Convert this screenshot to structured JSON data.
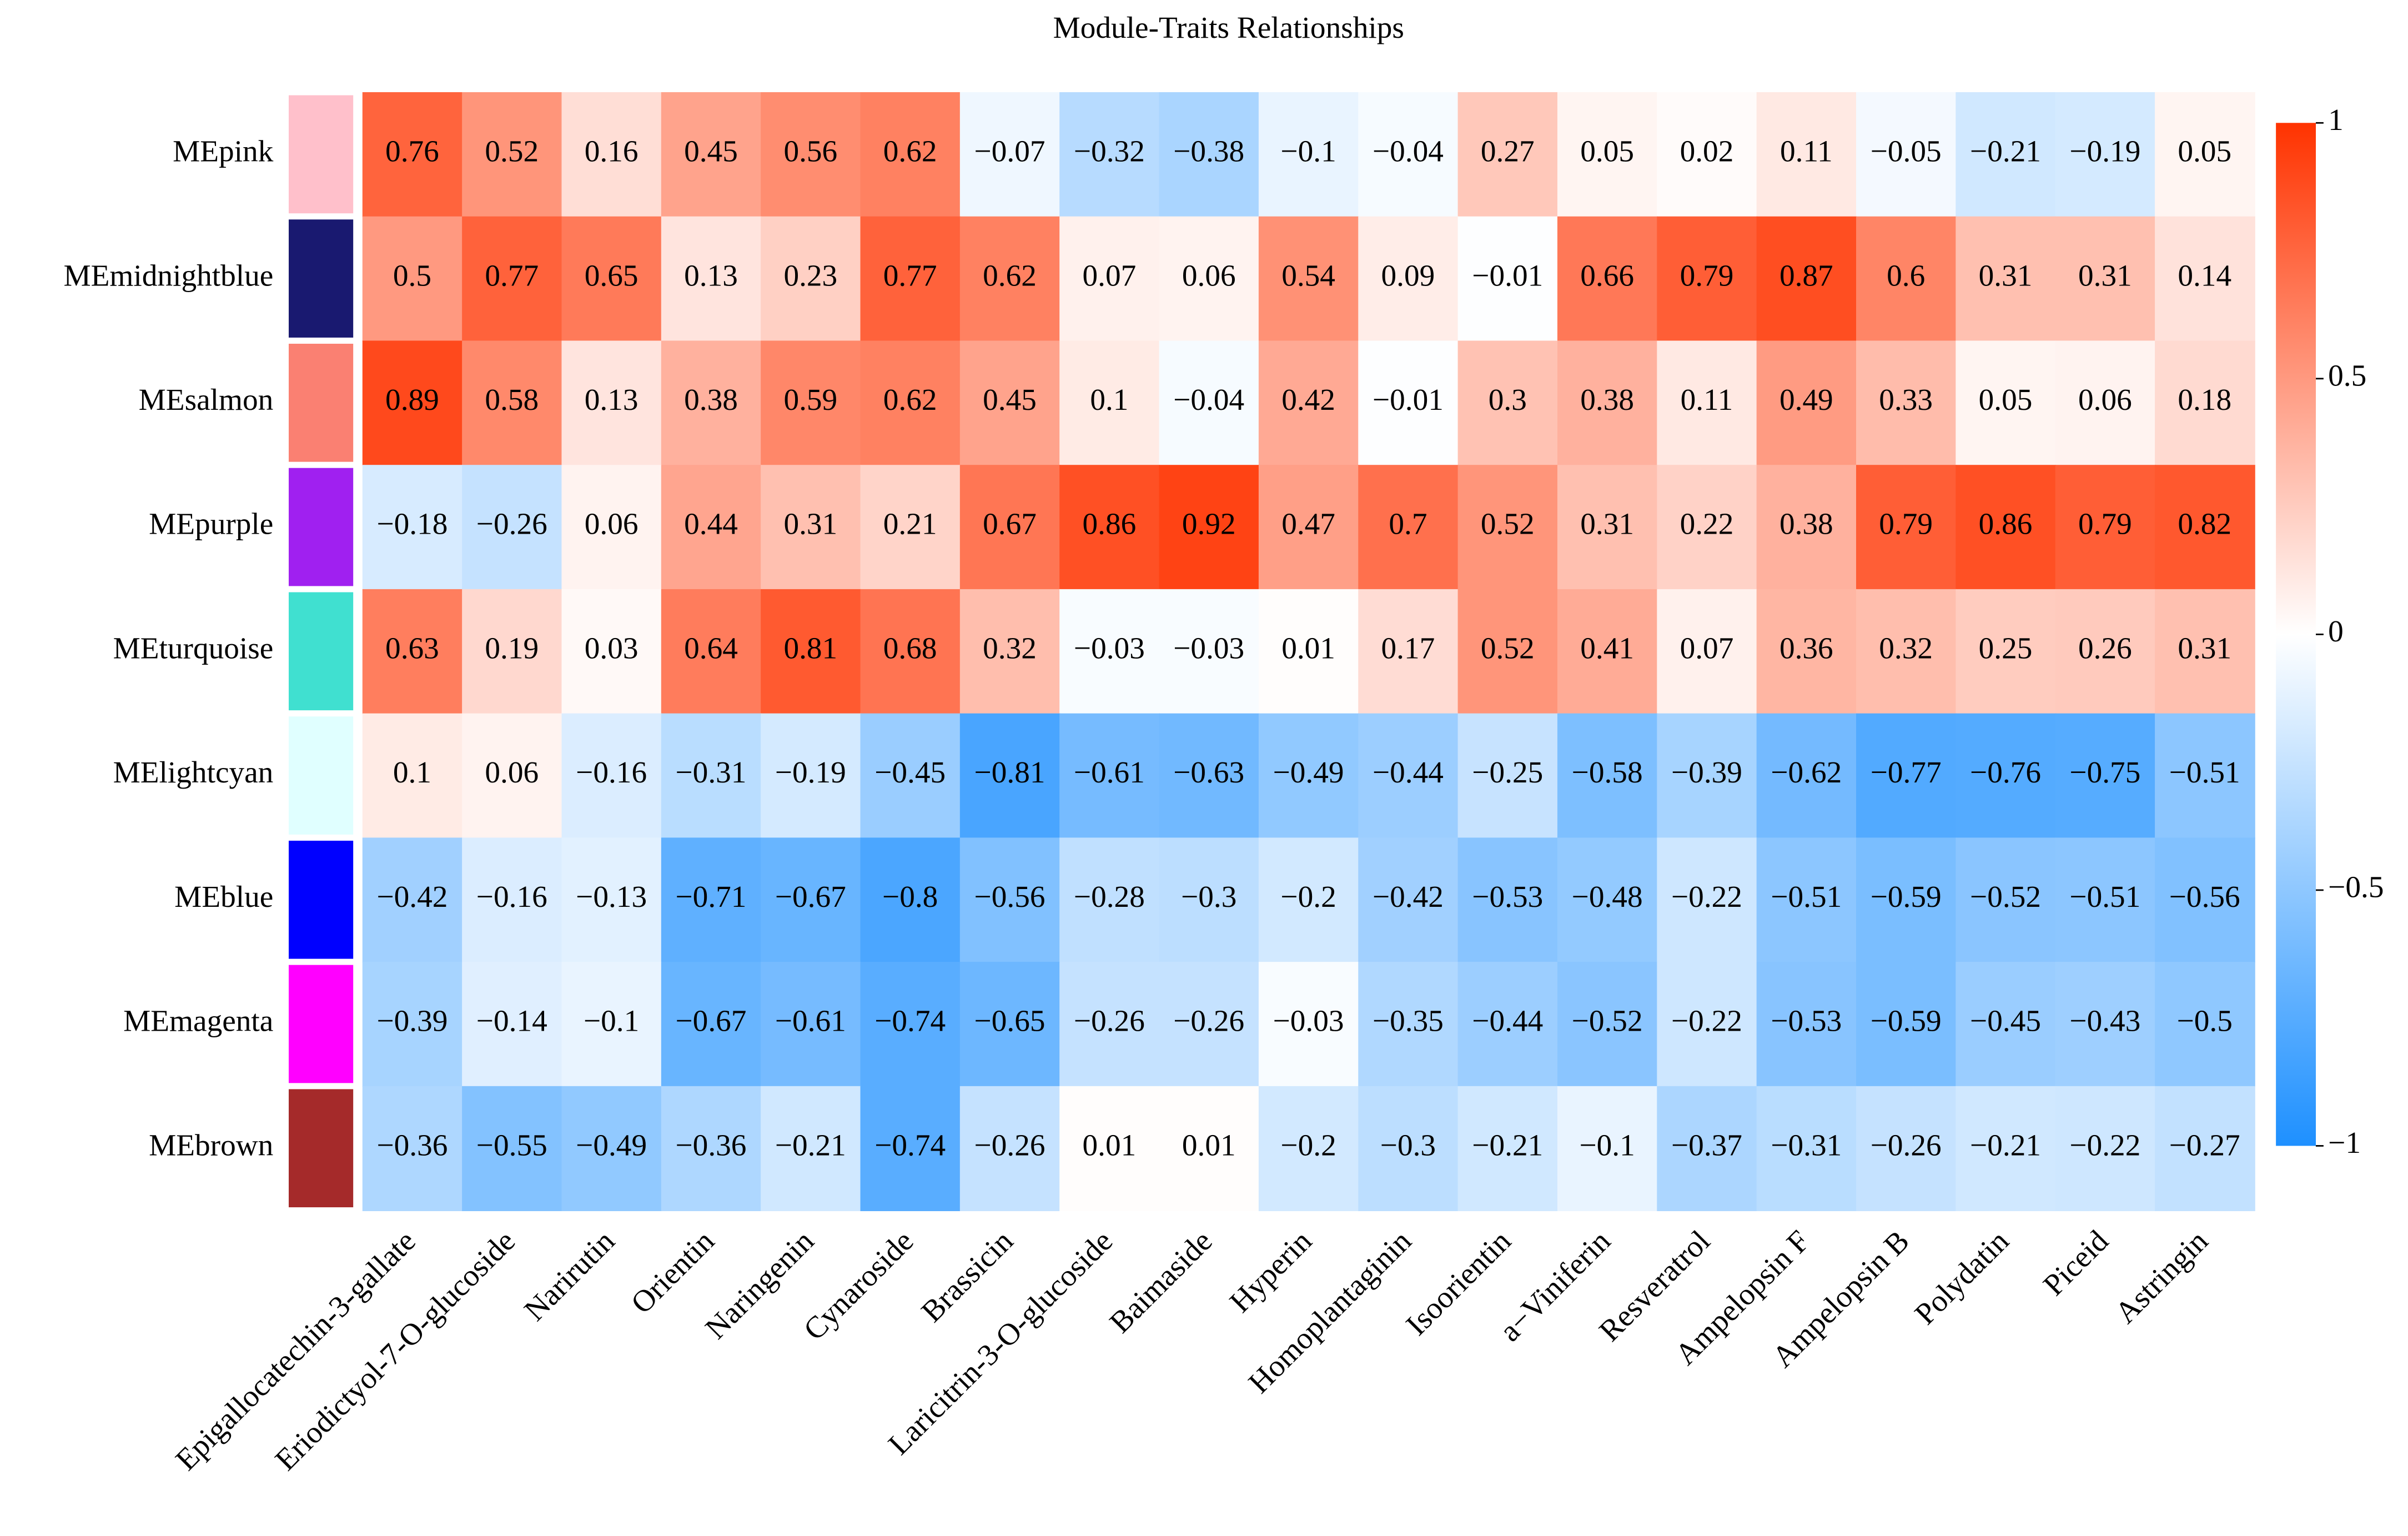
{
  "chart_data": {
    "type": "heatmap",
    "title": "Module-Traits Relationships",
    "categories": [
      "Epigallocatechin-3-gallate",
      "Eriodictyol-7-O-glucoside",
      "Narirutin",
      "Orientin",
      "Naringenin",
      "Cynaroside",
      "Brassicin",
      "Laricitrin-3-O-glucoside",
      "Baimaside",
      "Hyperin",
      "Homoplantaginin",
      "Isoorientin",
      "a−Viniferin",
      "Resveratrol",
      "Ampelopsin F",
      "Ampelopsin B",
      "Polydatin",
      "Piceid",
      "Astringin"
    ],
    "series": [
      {
        "name": "MEpink",
        "color": "#ffc0cb",
        "values": [
          0.76,
          0.52,
          0.16,
          0.45,
          0.56,
          0.62,
          -0.07,
          -0.32,
          -0.38,
          -0.1,
          -0.04,
          0.27,
          0.05,
          0.02,
          0.11,
          -0.05,
          -0.21,
          -0.19,
          0.05
        ],
        "value_labels": [
          "0.76",
          "0.52",
          "0.16",
          "0.45",
          "0.56",
          "0.62",
          "−0.07",
          "−0.32",
          "−0.38",
          "−0.1",
          "−0.04",
          "0.27",
          "0.05",
          "0.02",
          "0.11",
          "−0.05",
          "−0.21",
          "−0.19",
          "0.05"
        ]
      },
      {
        "name": "MEmidnightblue",
        "color": "#191970",
        "values": [
          0.5,
          0.77,
          0.65,
          0.13,
          0.23,
          0.77,
          0.62,
          0.07,
          0.06,
          0.54,
          0.09,
          -0.01,
          0.66,
          0.79,
          0.87,
          0.6,
          0.31,
          0.31,
          0.14
        ],
        "value_labels": [
          "0.5",
          "0.77",
          "0.65",
          "0.13",
          "0.23",
          "0.77",
          "0.62",
          "0.07",
          "0.06",
          "0.54",
          "0.09",
          "−0.01",
          "0.66",
          "0.79",
          "0.87",
          "0.6",
          "0.31",
          "0.31",
          "0.14"
        ]
      },
      {
        "name": "MEsalmon",
        "color": "#fa8072",
        "values": [
          0.89,
          0.58,
          0.13,
          0.38,
          0.59,
          0.62,
          0.45,
          0.1,
          -0.04,
          0.42,
          -0.01,
          0.3,
          0.38,
          0.11,
          0.49,
          0.33,
          0.05,
          0.06,
          0.18
        ],
        "value_labels": [
          "0.89",
          "0.58",
          "0.13",
          "0.38",
          "0.59",
          "0.62",
          "0.45",
          "0.1",
          "−0.04",
          "0.42",
          "−0.01",
          "0.3",
          "0.38",
          "0.11",
          "0.49",
          "0.33",
          "0.05",
          "0.06",
          "0.18"
        ]
      },
      {
        "name": "MEpurple",
        "color": "#a020f0",
        "values": [
          -0.18,
          -0.26,
          0.06,
          0.44,
          0.31,
          0.21,
          0.67,
          0.86,
          0.92,
          0.47,
          0.7,
          0.52,
          0.31,
          0.22,
          0.38,
          0.79,
          0.86,
          0.79,
          0.82
        ],
        "value_labels": [
          "−0.18",
          "−0.26",
          "0.06",
          "0.44",
          "0.31",
          "0.21",
          "0.67",
          "0.86",
          "0.92",
          "0.47",
          "0.7",
          "0.52",
          "0.31",
          "0.22",
          "0.38",
          "0.79",
          "0.86",
          "0.79",
          "0.82"
        ]
      },
      {
        "name": "MEturquoise",
        "color": "#40e0d0",
        "values": [
          0.63,
          0.19,
          0.03,
          0.64,
          0.81,
          0.68,
          0.32,
          -0.03,
          -0.03,
          0.01,
          0.17,
          0.52,
          0.41,
          0.07,
          0.36,
          0.32,
          0.25,
          0.26,
          0.31
        ],
        "value_labels": [
          "0.63",
          "0.19",
          "0.03",
          "0.64",
          "0.81",
          "0.68",
          "0.32",
          "−0.03",
          "−0.03",
          "0.01",
          "0.17",
          "0.52",
          "0.41",
          "0.07",
          "0.36",
          "0.32",
          "0.25",
          "0.26",
          "0.31"
        ]
      },
      {
        "name": "MElightcyan",
        "color": "#e0ffff",
        "values": [
          0.1,
          0.06,
          -0.16,
          -0.31,
          -0.19,
          -0.45,
          -0.81,
          -0.61,
          -0.63,
          -0.49,
          -0.44,
          -0.25,
          -0.58,
          -0.39,
          -0.62,
          -0.77,
          -0.76,
          -0.75,
          -0.51
        ],
        "value_labels": [
          "0.1",
          "0.06",
          "−0.16",
          "−0.31",
          "−0.19",
          "−0.45",
          "−0.81",
          "−0.61",
          "−0.63",
          "−0.49",
          "−0.44",
          "−0.25",
          "−0.58",
          "−0.39",
          "−0.62",
          "−0.77",
          "−0.76",
          "−0.75",
          "−0.51"
        ]
      },
      {
        "name": "MEblue",
        "color": "#0000ff",
        "values": [
          -0.42,
          -0.16,
          -0.13,
          -0.71,
          -0.67,
          -0.8,
          -0.56,
          -0.28,
          -0.3,
          -0.2,
          -0.42,
          -0.53,
          -0.48,
          -0.22,
          -0.51,
          -0.59,
          -0.52,
          -0.51,
          -0.56
        ],
        "value_labels": [
          "−0.42",
          "−0.16",
          "−0.13",
          "−0.71",
          "−0.67",
          "−0.8",
          "−0.56",
          "−0.28",
          "−0.3",
          "−0.2",
          "−0.42",
          "−0.53",
          "−0.48",
          "−0.22",
          "−0.51",
          "−0.59",
          "−0.52",
          "−0.51",
          "−0.56"
        ]
      },
      {
        "name": "MEmagenta",
        "color": "#ff00ff",
        "values": [
          -0.39,
          -0.14,
          -0.1,
          -0.67,
          -0.61,
          -0.74,
          -0.65,
          -0.26,
          -0.26,
          -0.03,
          -0.35,
          -0.44,
          -0.52,
          -0.22,
          -0.53,
          -0.59,
          -0.45,
          -0.43,
          -0.5
        ],
        "value_labels": [
          "−0.39",
          "−0.14",
          "−0.1",
          "−0.67",
          "−0.61",
          "−0.74",
          "−0.65",
          "−0.26",
          "−0.26",
          "−0.03",
          "−0.35",
          "−0.44",
          "−0.52",
          "−0.22",
          "−0.53",
          "−0.59",
          "−0.45",
          "−0.43",
          "−0.5"
        ]
      },
      {
        "name": "MEbrown",
        "color": "#a52a2a",
        "values": [
          -0.36,
          -0.55,
          -0.49,
          -0.36,
          -0.21,
          -0.74,
          -0.26,
          0.01,
          0.01,
          -0.2,
          -0.3,
          -0.21,
          -0.1,
          -0.37,
          -0.31,
          -0.26,
          -0.21,
          -0.22,
          -0.27
        ],
        "value_labels": [
          "−0.36",
          "−0.55",
          "−0.49",
          "−0.36",
          "−0.21",
          "−0.74",
          "−0.26",
          "0.01",
          "0.01",
          "−0.2",
          "−0.3",
          "−0.21",
          "−0.1",
          "−0.37",
          "−0.31",
          "−0.26",
          "−0.21",
          "−0.22",
          "−0.27"
        ]
      }
    ],
    "colorscale": [
      "#1e90ff",
      "#ffffff",
      "#ff3300"
    ],
    "zlim": [
      -1,
      1
    ],
    "zticks": [
      1,
      0.5,
      0,
      {
        "value": -0.5,
        "label": "−0.5"
      },
      {
        "value": -1,
        "label": "−1"
      }
    ]
  }
}
